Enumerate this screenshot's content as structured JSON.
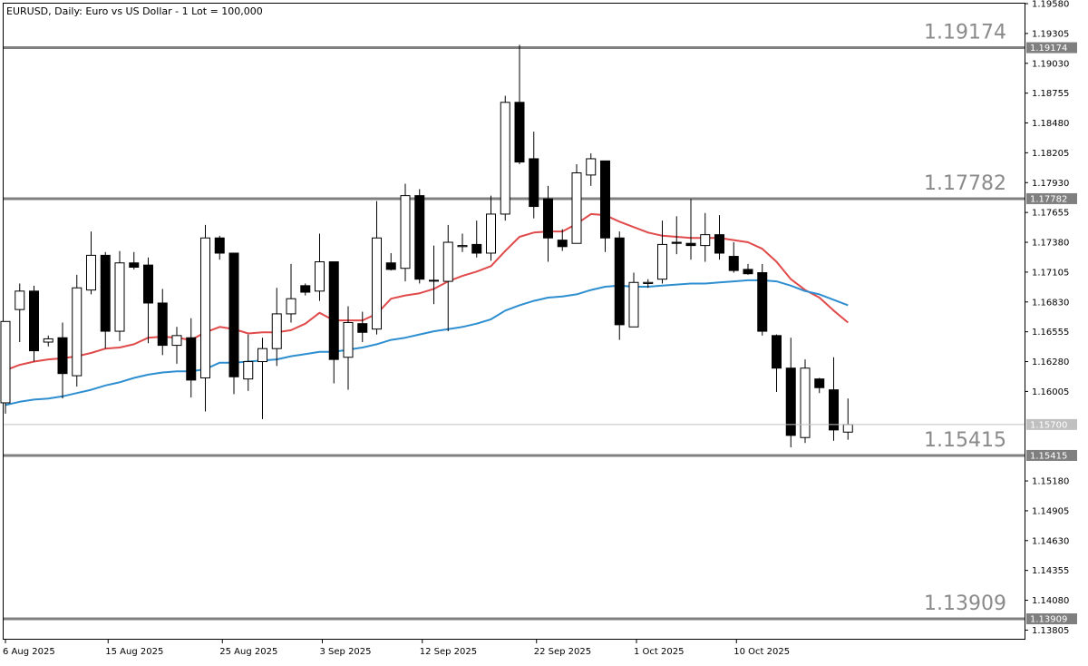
{
  "chart_data": {
    "type": "candlestick",
    "symbol": "EURUSD",
    "timeframe": "Daily",
    "title": "EURUSD, Daily:  Euro vs US Dollar - 1 Lot = 100,000",
    "ylim": [
      1.13725,
      1.1958
    ],
    "y_ticks": [
      "1.19580",
      "1.19305",
      "1.19030",
      "1.18755",
      "1.18480",
      "1.18205",
      "1.17930",
      "1.17655",
      "1.17380",
      "1.17105",
      "1.16830",
      "1.16555",
      "1.16280",
      "1.16005",
      "1.15180",
      "1.14905",
      "1.14630",
      "1.14355",
      "1.14080",
      "1.13805"
    ],
    "x_labels": [
      {
        "label": "6 Aug 2025",
        "index": 0
      },
      {
        "label": "15 Aug 2025",
        "index": 7
      },
      {
        "label": "25 Aug 2025",
        "index": 15
      },
      {
        "label": "3 Sep 2025",
        "index": 22
      },
      {
        "label": "12 Sep 2025",
        "index": 29
      },
      {
        "label": "22 Sep 2025",
        "index": 37
      },
      {
        "label": "1 Oct 2025",
        "index": 44
      },
      {
        "label": "10 Oct 2025",
        "index": 51
      }
    ],
    "candles": [
      {
        "o": 1.159,
        "h": 1.1665,
        "l": 1.158,
        "c": 1.1665
      },
      {
        "o": 1.1676,
        "h": 1.17,
        "l": 1.1646,
        "c": 1.1693
      },
      {
        "o": 1.1693,
        "h": 1.1698,
        "l": 1.1628,
        "c": 1.1638
      },
      {
        "o": 1.1646,
        "h": 1.1652,
        "l": 1.1642,
        "c": 1.1649
      },
      {
        "o": 1.165,
        "h": 1.1664,
        "l": 1.1594,
        "c": 1.1617
      },
      {
        "o": 1.1615,
        "h": 1.1708,
        "l": 1.1605,
        "c": 1.1696
      },
      {
        "o": 1.1694,
        "h": 1.1748,
        "l": 1.169,
        "c": 1.1726
      },
      {
        "o": 1.1726,
        "h": 1.1729,
        "l": 1.164,
        "c": 1.1656
      },
      {
        "o": 1.1656,
        "h": 1.173,
        "l": 1.1647,
        "c": 1.1719
      },
      {
        "o": 1.1719,
        "h": 1.1729,
        "l": 1.1713,
        "c": 1.1715
      },
      {
        "o": 1.1717,
        "h": 1.1724,
        "l": 1.1645,
        "c": 1.1682
      },
      {
        "o": 1.1682,
        "h": 1.1695,
        "l": 1.1634,
        "c": 1.1643
      },
      {
        "o": 1.1643,
        "h": 1.166,
        "l": 1.1626,
        "c": 1.1652
      },
      {
        "o": 1.165,
        "h": 1.1668,
        "l": 1.1595,
        "c": 1.1611
      },
      {
        "o": 1.1613,
        "h": 1.1754,
        "l": 1.1582,
        "c": 1.1742
      },
      {
        "o": 1.1742,
        "h": 1.1744,
        "l": 1.1722,
        "c": 1.1728
      },
      {
        "o": 1.1728,
        "h": 1.1728,
        "l": 1.1598,
        "c": 1.1614
      },
      {
        "o": 1.1612,
        "h": 1.1653,
        "l": 1.1601,
        "c": 1.1628
      },
      {
        "o": 1.1628,
        "h": 1.165,
        "l": 1.1575,
        "c": 1.164
      },
      {
        "o": 1.164,
        "h": 1.1696,
        "l": 1.1624,
        "c": 1.1672
      },
      {
        "o": 1.1672,
        "h": 1.1718,
        "l": 1.1664,
        "c": 1.1686
      },
      {
        "o": 1.1698,
        "h": 1.17,
        "l": 1.1689,
        "c": 1.1692
      },
      {
        "o": 1.1693,
        "h": 1.1746,
        "l": 1.1684,
        "c": 1.172
      },
      {
        "o": 1.172,
        "h": 1.172,
        "l": 1.1608,
        "c": 1.163
      },
      {
        "o": 1.1632,
        "h": 1.1679,
        "l": 1.1602,
        "c": 1.1664
      },
      {
        "o": 1.1663,
        "h": 1.1674,
        "l": 1.1646,
        "c": 1.1655
      },
      {
        "o": 1.1658,
        "h": 1.1776,
        "l": 1.1653,
        "c": 1.1742
      },
      {
        "o": 1.1719,
        "h": 1.1728,
        "l": 1.1712,
        "c": 1.1713
      },
      {
        "o": 1.1714,
        "h": 1.1792,
        "l": 1.1702,
        "c": 1.1781
      },
      {
        "o": 1.1781,
        "h": 1.1787,
        "l": 1.17,
        "c": 1.1704
      },
      {
        "o": 1.1703,
        "h": 1.1735,
        "l": 1.1681,
        "c": 1.1703
      },
      {
        "o": 1.1702,
        "h": 1.1754,
        "l": 1.1656,
        "c": 1.1738
      },
      {
        "o": 1.1734,
        "h": 1.1746,
        "l": 1.1729,
        "c": 1.1735
      },
      {
        "o": 1.1736,
        "h": 1.1758,
        "l": 1.1724,
        "c": 1.1728
      },
      {
        "o": 1.1728,
        "h": 1.1781,
        "l": 1.1721,
        "c": 1.1764
      },
      {
        "o": 1.1764,
        "h": 1.1873,
        "l": 1.1758,
        "c": 1.1867
      },
      {
        "o": 1.1867,
        "h": 1.192,
        "l": 1.181,
        "c": 1.1812
      },
      {
        "o": 1.1815,
        "h": 1.184,
        "l": 1.176,
        "c": 1.1771
      },
      {
        "o": 1.1778,
        "h": 1.179,
        "l": 1.172,
        "c": 1.1742
      },
      {
        "o": 1.174,
        "h": 1.175,
        "l": 1.173,
        "c": 1.1734
      },
      {
        "o": 1.1737,
        "h": 1.181,
        "l": 1.1737,
        "c": 1.1802
      },
      {
        "o": 1.18,
        "h": 1.182,
        "l": 1.179,
        "c": 1.1815
      },
      {
        "o": 1.1813,
        "h": 1.1813,
        "l": 1.1729,
        "c": 1.1742
      },
      {
        "o": 1.1742,
        "h": 1.1748,
        "l": 1.1648,
        "c": 1.1662
      },
      {
        "o": 1.166,
        "h": 1.171,
        "l": 1.166,
        "c": 1.1701
      },
      {
        "o": 1.17,
        "h": 1.1704,
        "l": 1.1696,
        "c": 1.1701
      },
      {
        "o": 1.1704,
        "h": 1.1758,
        "l": 1.17,
        "c": 1.1736
      },
      {
        "o": 1.1738,
        "h": 1.1762,
        "l": 1.1727,
        "c": 1.1737
      },
      {
        "o": 1.1737,
        "h": 1.1778,
        "l": 1.1722,
        "c": 1.1735
      },
      {
        "o": 1.1735,
        "h": 1.1765,
        "l": 1.172,
        "c": 1.1745
      },
      {
        "o": 1.1745,
        "h": 1.1763,
        "l": 1.1722,
        "c": 1.1728
      },
      {
        "o": 1.1725,
        "h": 1.1738,
        "l": 1.171,
        "c": 1.1712
      },
      {
        "o": 1.1713,
        "h": 1.1718,
        "l": 1.1708,
        "c": 1.1709
      },
      {
        "o": 1.171,
        "h": 1.1718,
        "l": 1.1652,
        "c": 1.1656
      },
      {
        "o": 1.1652,
        "h": 1.1653,
        "l": 1.16,
        "c": 1.1622
      },
      {
        "o": 1.1622,
        "h": 1.165,
        "l": 1.1549,
        "c": 1.156
      },
      {
        "o": 1.1558,
        "h": 1.163,
        "l": 1.1553,
        "c": 1.1622
      },
      {
        "o": 1.1612,
        "h": 1.1613,
        "l": 1.1599,
        "c": 1.1604
      },
      {
        "o": 1.1602,
        "h": 1.1632,
        "l": 1.1555,
        "c": 1.1565
      },
      {
        "o": 1.1563,
        "h": 1.1594,
        "l": 1.1556,
        "c": 1.157
      }
    ],
    "series": [
      {
        "name": "",
        "color": "#e04a4a",
        "values": [
          1.162,
          1.1625,
          1.1628,
          1.163,
          1.1631,
          1.1633,
          1.1636,
          1.164,
          1.1641,
          1.1644,
          1.165,
          1.1651,
          1.165,
          1.1648,
          1.1655,
          1.166,
          1.1658,
          1.1654,
          1.1655,
          1.1655,
          1.1657,
          1.1663,
          1.1673,
          1.1666,
          1.1666,
          1.1666,
          1.1672,
          1.1686,
          1.1689,
          1.1691,
          1.1695,
          1.1702,
          1.1707,
          1.1711,
          1.1716,
          1.173,
          1.1743,
          1.1747,
          1.1748,
          1.1748,
          1.1755,
          1.1764,
          1.1763,
          1.1757,
          1.1752,
          1.1747,
          1.1744,
          1.1743,
          1.1742,
          1.1742,
          1.1742,
          1.174,
          1.1738,
          1.1732,
          1.172,
          1.1704,
          1.1694,
          1.1687,
          1.1675,
          1.1664
        ]
      },
      {
        "name": "",
        "color": "#2d8ed0",
        "values": [
          1.1588,
          1.1591,
          1.1593,
          1.1594,
          1.1596,
          1.1599,
          1.1602,
          1.1606,
          1.1609,
          1.1613,
          1.1616,
          1.1618,
          1.1619,
          1.1619,
          1.1621,
          1.1627,
          1.1627,
          1.1628,
          1.1629,
          1.163,
          1.1633,
          1.1635,
          1.1637,
          1.1637,
          1.1639,
          1.1641,
          1.1644,
          1.1648,
          1.165,
          1.1653,
          1.1656,
          1.1658,
          1.166,
          1.1663,
          1.1667,
          1.1675,
          1.168,
          1.1684,
          1.1687,
          1.1688,
          1.169,
          1.1694,
          1.1697,
          1.1698,
          1.1697,
          1.1697,
          1.1698,
          1.1699,
          1.17,
          1.17,
          1.1701,
          1.1702,
          1.1703,
          1.1703,
          1.1702,
          1.1698,
          1.1693,
          1.169,
          1.1685,
          1.168
        ]
      }
    ],
    "horizontal_levels": [
      {
        "price": 1.19174,
        "label": "1.19174",
        "tag": "1.19174"
      },
      {
        "price": 1.17782,
        "label": "1.17782",
        "tag": "1.17782"
      },
      {
        "price": 1.15415,
        "label": "1.15415",
        "tag": "1.15415"
      },
      {
        "price": 1.13909,
        "label": "1.13909",
        "tag": "1.13909"
      }
    ],
    "current_price": {
      "price": 1.157,
      "label": "1.15700"
    },
    "grid": false,
    "legend": "none"
  }
}
